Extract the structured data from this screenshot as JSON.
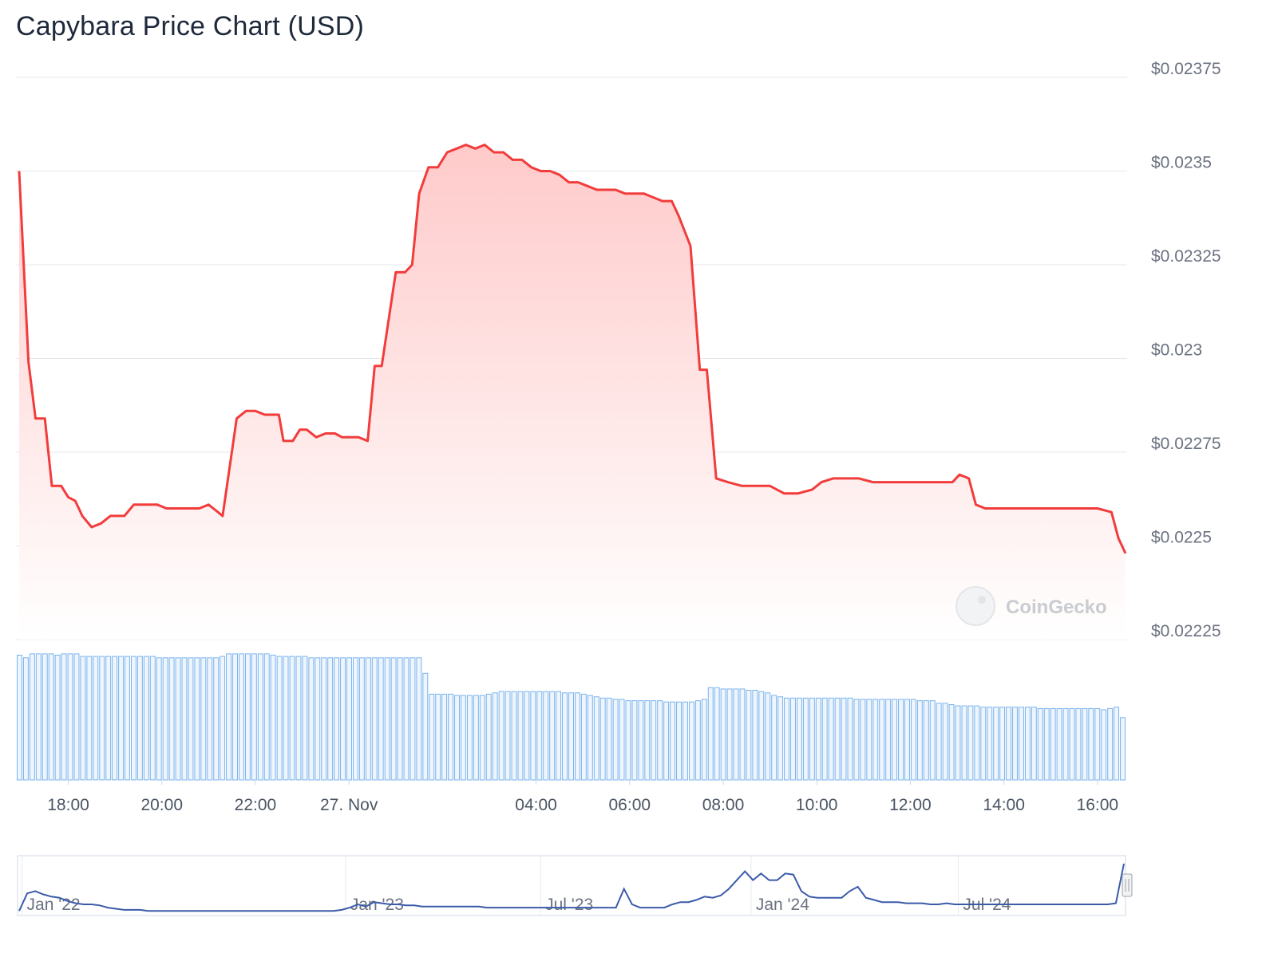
{
  "title": "Capybara Price Chart (USD)",
  "watermark": "CoinGecko",
  "colors": {
    "price_line": "#f23c3c",
    "price_fill_top": "#ffcaca",
    "price_fill_bottom": "#ffffff",
    "volume_bar": "#7ab3ec",
    "volume_bar_fill": "#eef5fd",
    "navigator_line": "#3b5ba9",
    "grid": "#e5e7eb",
    "navigator_border": "#cfd8e6"
  },
  "chart_data": [
    {
      "type": "line",
      "subtype": "area",
      "title": "Capybara Price Chart (USD)",
      "y_tick_labels": [
        "$0.02225",
        "$0.0225",
        "$0.02275",
        "$0.023",
        "$0.02325",
        "$0.0235",
        "$0.02375"
      ],
      "y_ticks": [
        0.02225,
        0.0225,
        0.02275,
        0.023,
        0.02325,
        0.0235,
        0.02375
      ],
      "ylim": [
        0.02225,
        0.02375
      ],
      "x_tick_labels": [
        "18:00",
        "20:00",
        "22:00",
        "27. Nov",
        "04:00",
        "06:00",
        "08:00",
        "10:00",
        "12:00",
        "14:00",
        "16:00"
      ],
      "x_tick_hours": [
        18,
        20,
        22,
        24,
        28,
        30,
        32,
        34,
        36,
        38,
        40
      ],
      "xlim_hours": [
        16.95,
        40.6
      ],
      "grid": true,
      "series": [
        {
          "points": [
            [
              16.95,
              0.0235
            ],
            [
              17.15,
              0.02299
            ],
            [
              17.3,
              0.02284
            ],
            [
              17.5,
              0.02284
            ],
            [
              17.65,
              0.02266
            ],
            [
              17.85,
              0.02266
            ],
            [
              18.0,
              0.02263
            ],
            [
              18.15,
              0.02262
            ],
            [
              18.3,
              0.02258
            ],
            [
              18.5,
              0.02255
            ],
            [
              18.7,
              0.02256
            ],
            [
              18.9,
              0.02258
            ],
            [
              19.2,
              0.02258
            ],
            [
              19.4,
              0.02261
            ],
            [
              19.7,
              0.02261
            ],
            [
              19.9,
              0.02261
            ],
            [
              20.1,
              0.0226
            ],
            [
              20.3,
              0.0226
            ],
            [
              20.5,
              0.0226
            ],
            [
              20.8,
              0.0226
            ],
            [
              21.0,
              0.02261
            ],
            [
              21.2,
              0.02259
            ],
            [
              21.3,
              0.02258
            ],
            [
              21.6,
              0.02284
            ],
            [
              21.8,
              0.02286
            ],
            [
              22.0,
              0.02286
            ],
            [
              22.2,
              0.02285
            ],
            [
              22.5,
              0.02285
            ],
            [
              22.6,
              0.02278
            ],
            [
              22.8,
              0.02278
            ],
            [
              22.95,
              0.02281
            ],
            [
              23.1,
              0.02281
            ],
            [
              23.3,
              0.02279
            ],
            [
              23.5,
              0.0228
            ],
            [
              23.7,
              0.0228
            ],
            [
              23.85,
              0.02279
            ],
            [
              24.0,
              0.02279
            ],
            [
              24.2,
              0.02279
            ],
            [
              24.4,
              0.02278
            ],
            [
              24.55,
              0.02298
            ],
            [
              24.7,
              0.02298
            ],
            [
              25.0,
              0.02323
            ],
            [
              25.2,
              0.02323
            ],
            [
              25.35,
              0.02325
            ],
            [
              25.5,
              0.02344
            ],
            [
              25.7,
              0.02351
            ],
            [
              25.9,
              0.02351
            ],
            [
              26.1,
              0.02355
            ],
            [
              26.3,
              0.02356
            ],
            [
              26.5,
              0.02357
            ],
            [
              26.7,
              0.02356
            ],
            [
              26.9,
              0.02357
            ],
            [
              27.1,
              0.02355
            ],
            [
              27.3,
              0.02355
            ],
            [
              27.5,
              0.02353
            ],
            [
              27.7,
              0.02353
            ],
            [
              27.9,
              0.02351
            ],
            [
              28.1,
              0.0235
            ],
            [
              28.3,
              0.0235
            ],
            [
              28.5,
              0.02349
            ],
            [
              28.7,
              0.02347
            ],
            [
              28.9,
              0.02347
            ],
            [
              29.1,
              0.02346
            ],
            [
              29.3,
              0.02345
            ],
            [
              29.5,
              0.02345
            ],
            [
              29.7,
              0.02345
            ],
            [
              29.9,
              0.02344
            ],
            [
              30.1,
              0.02344
            ],
            [
              30.3,
              0.02344
            ],
            [
              30.5,
              0.02343
            ],
            [
              30.7,
              0.02342
            ],
            [
              30.9,
              0.02342
            ],
            [
              31.05,
              0.02338
            ],
            [
              31.3,
              0.0233
            ],
            [
              31.5,
              0.02297
            ],
            [
              31.65,
              0.02297
            ],
            [
              31.85,
              0.02268
            ],
            [
              32.1,
              0.02267
            ],
            [
              32.4,
              0.02266
            ],
            [
              32.7,
              0.02266
            ],
            [
              33.0,
              0.02266
            ],
            [
              33.3,
              0.02264
            ],
            [
              33.6,
              0.02264
            ],
            [
              33.9,
              0.02265
            ],
            [
              34.1,
              0.02267
            ],
            [
              34.35,
              0.02268
            ],
            [
              34.6,
              0.02268
            ],
            [
              34.9,
              0.02268
            ],
            [
              35.2,
              0.02267
            ],
            [
              35.5,
              0.02267
            ],
            [
              35.8,
              0.02267
            ],
            [
              36.1,
              0.02267
            ],
            [
              36.4,
              0.02267
            ],
            [
              36.7,
              0.02267
            ],
            [
              36.9,
              0.02267
            ],
            [
              37.05,
              0.02269
            ],
            [
              37.25,
              0.02268
            ],
            [
              37.4,
              0.02261
            ],
            [
              37.6,
              0.0226
            ],
            [
              37.9,
              0.0226
            ],
            [
              38.2,
              0.0226
            ],
            [
              38.5,
              0.0226
            ],
            [
              38.8,
              0.0226
            ],
            [
              39.1,
              0.0226
            ],
            [
              39.4,
              0.0226
            ],
            [
              39.7,
              0.0226
            ],
            [
              40.0,
              0.0226
            ],
            [
              40.3,
              0.02259
            ],
            [
              40.45,
              0.02252
            ],
            [
              40.6,
              0.02248
            ]
          ]
        }
      ]
    },
    {
      "type": "bar",
      "title": "",
      "values": [
        96,
        94,
        97,
        97,
        97,
        97,
        96,
        97,
        97,
        97,
        95,
        95,
        95,
        95,
        95,
        95,
        95,
        95,
        95,
        95,
        95,
        95,
        94,
        94,
        94,
        94,
        94,
        94,
        94,
        94,
        94,
        94,
        95,
        97,
        97,
        97,
        97,
        97,
        97,
        97,
        96,
        95,
        95,
        95,
        95,
        95,
        94,
        94,
        94,
        94,
        94,
        94,
        94,
        94,
        94,
        94,
        94,
        94,
        94,
        94,
        94,
        94,
        94,
        94,
        82,
        66,
        66,
        66,
        66,
        65,
        65,
        65,
        65,
        65,
        66,
        67,
        68,
        68,
        68,
        68,
        68,
        68,
        68,
        68,
        68,
        68,
        67,
        67,
        67,
        66,
        65,
        64,
        63,
        63,
        62,
        62,
        61,
        61,
        61,
        61,
        61,
        61,
        60,
        60,
        60,
        60,
        60,
        61,
        62,
        71,
        71,
        70,
        70,
        70,
        70,
        69,
        69,
        68,
        67,
        65,
        64,
        63,
        63,
        63,
        63,
        63,
        63,
        63,
        63,
        63,
        63,
        63,
        62,
        62,
        62,
        62,
        62,
        62,
        62,
        62,
        62,
        62,
        61,
        61,
        61,
        59,
        59,
        58,
        57,
        57,
        57,
        57,
        56,
        56,
        56,
        56,
        56,
        56,
        56,
        56,
        56,
        55,
        55,
        55,
        55,
        55,
        55,
        55,
        55,
        55,
        55,
        54,
        55,
        56,
        48
      ]
    },
    {
      "type": "line",
      "title": "",
      "x_tick_labels": [
        "Jan '22",
        "Jan '23",
        "Jul '23",
        "Jan '24",
        "Jul '24"
      ],
      "x_tick_positions": [
        0.004,
        0.296,
        0.472,
        0.662,
        0.849
      ],
      "series": [
        {
          "values": [
            2,
            18,
            20,
            17,
            15,
            14,
            11,
            9,
            8,
            8,
            7,
            5,
            4,
            3,
            3,
            3,
            2,
            2,
            2,
            2,
            2,
            2,
            2,
            2,
            2,
            2,
            2,
            2,
            2,
            2,
            2,
            2,
            2,
            2,
            2,
            2,
            2,
            2,
            2,
            2,
            3,
            5,
            8,
            6,
            10,
            9,
            8,
            8,
            7,
            7,
            6,
            6,
            6,
            6,
            6,
            6,
            6,
            6,
            5,
            5,
            5,
            5,
            5,
            5,
            5,
            5,
            5,
            5,
            5,
            5,
            5,
            5,
            5,
            5,
            5,
            22,
            8,
            5,
            5,
            5,
            5,
            8,
            10,
            10,
            12,
            15,
            14,
            16,
            22,
            30,
            38,
            30,
            36,
            30,
            30,
            36,
            35,
            20,
            15,
            14,
            14,
            14,
            14,
            20,
            24,
            14,
            12,
            10,
            10,
            10,
            9,
            9,
            9,
            8,
            8,
            9,
            8,
            8,
            8,
            8,
            8,
            8,
            8,
            8,
            8,
            8,
            8,
            8,
            8,
            8,
            8,
            8,
            8,
            8,
            8,
            8,
            9,
            45
          ]
        }
      ]
    }
  ]
}
